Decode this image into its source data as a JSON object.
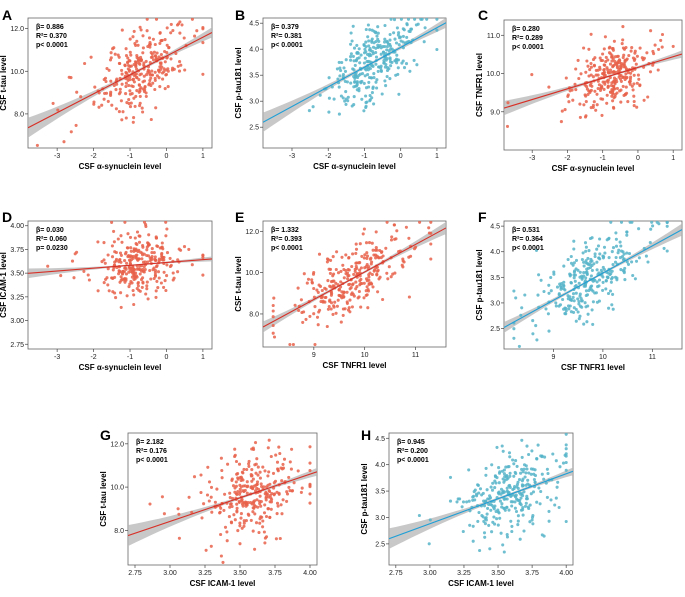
{
  "colors": {
    "red": "#e8624a",
    "blue": "#56b4c9",
    "red_line": "#d73027",
    "blue_line": "#1f9fd6",
    "band": "#b5b5b5"
  },
  "chart_data": [
    {
      "type": "scatter",
      "letter": "A",
      "color": "red",
      "stats": {
        "beta": "β= 0.886",
        "r2": "R²= 0.370",
        "p": "p< 0.0001"
      },
      "xlabel": "CSF α-synuclein level",
      "ylabel": "CSF t-tau level",
      "xlim": [
        -3.8,
        1.25
      ],
      "ylim": [
        6.4,
        12.5
      ],
      "xticks": [
        -3,
        -2,
        -1,
        0,
        1
      ],
      "xtick_labels": [
        "-3",
        "-2",
        "-1",
        "0",
        "1"
      ],
      "yticks": [
        8,
        10,
        12
      ],
      "ytick_labels": [
        "8.0",
        "10.0",
        "12.0"
      ],
      "x_center": -0.75,
      "x_spread": 0.55,
      "x_min_pt": -3.7,
      "x_max_pt": 1.0,
      "fit": {
        "intercept": 10.05,
        "slope": 0.886
      },
      "resid_sd": 0.9,
      "band_width": 0.55
    },
    {
      "type": "scatter",
      "letter": "B",
      "color": "blue",
      "stats": {
        "beta": "β= 0.379",
        "r2": "R²= 0.381",
        "p": "p< 0.0001"
      },
      "xlabel": "CSF α-synuclein level",
      "ylabel": "CSF p-tau181 level",
      "xlim": [
        -3.8,
        1.25
      ],
      "ylim": [
        2.1,
        4.6
      ],
      "xticks": [
        -3,
        -2,
        -1,
        0,
        1
      ],
      "xtick_labels": [
        "-3",
        "-2",
        "-1",
        "0",
        "1"
      ],
      "yticks": [
        2.5,
        3.0,
        3.5,
        4.0,
        4.5
      ],
      "ytick_labels": [
        "2.5",
        "3.0",
        "3.5",
        "4.0",
        "4.5"
      ],
      "x_center": -0.75,
      "x_spread": 0.55,
      "x_min_pt": -3.7,
      "x_max_pt": 1.0,
      "fit": {
        "intercept": 3.75,
        "slope": 0.379
      },
      "resid_sd": 0.36,
      "band_width": 0.22
    },
    {
      "type": "scatter",
      "letter": "C",
      "color": "red",
      "stats": {
        "beta": "β= 0.280",
        "r2": "R²= 0.289",
        "p": "p< 0.0001"
      },
      "xlabel": "CSF α-synuclein level",
      "ylabel": "CSF TNFR1 level",
      "xlim": [
        -3.8,
        1.25
      ],
      "ylim": [
        8.0,
        11.4
      ],
      "xticks": [
        -3,
        -2,
        -1,
        0,
        1
      ],
      "xtick_labels": [
        "-3",
        "-2",
        "-1",
        "0",
        "1"
      ],
      "yticks": [
        9,
        10,
        11
      ],
      "ytick_labels": [
        "9.0",
        "10.0",
        "11.0"
      ],
      "x_center": -0.75,
      "x_spread": 0.55,
      "x_min_pt": -3.7,
      "x_max_pt": 1.0,
      "fit": {
        "intercept": 9.95,
        "slope": 0.28
      },
      "resid_sd": 0.42,
      "band_width": 0.22
    },
    {
      "type": "scatter",
      "letter": "D",
      "color": "red",
      "stats": {
        "beta": "β= 0.030",
        "r2": "R²= 0.060",
        "p": "p= 0.0230"
      },
      "xlabel": "CSF α-synuclein level",
      "ylabel": "CSF ICAM-1 level",
      "xlim": [
        -3.8,
        1.25
      ],
      "ylim": [
        2.7,
        4.05
      ],
      "xticks": [
        -3,
        -2,
        -1,
        0,
        1
      ],
      "xtick_labels": [
        "-3",
        "-2",
        "-1",
        "0",
        "1"
      ],
      "yticks": [
        2.75,
        3.0,
        3.25,
        3.5,
        3.75,
        4.0
      ],
      "ytick_labels": [
        "2.75",
        "3.00",
        "3.25",
        "3.50",
        "3.75",
        "4.00"
      ],
      "x_center": -0.75,
      "x_spread": 0.55,
      "x_min_pt": -3.7,
      "x_max_pt": 1.0,
      "fit": {
        "intercept": 3.59,
        "slope": 0.03
      },
      "resid_sd": 0.16,
      "band_width": 0.06
    },
    {
      "type": "scatter",
      "letter": "E",
      "color": "red",
      "stats": {
        "beta": "β= 1.332",
        "r2": "R²= 0.393",
        "p": "p< 0.0001"
      },
      "xlabel": "CSF TNFR1 level",
      "ylabel": "CSF t-tau level",
      "xlim": [
        8.0,
        11.6
      ],
      "ylim": [
        6.4,
        12.5
      ],
      "xticks": [
        9,
        10,
        11
      ],
      "xtick_labels": [
        "9",
        "10",
        "11"
      ],
      "yticks": [
        8,
        10,
        12
      ],
      "ytick_labels": [
        "8.0",
        "10.0",
        "12.0"
      ],
      "x_center": 9.75,
      "x_spread": 0.5,
      "x_min_pt": 8.2,
      "x_max_pt": 11.3,
      "fit": {
        "intercept": 9.7,
        "slope": 1.332
      },
      "resid_sd": 0.85,
      "band_width": 0.45
    },
    {
      "type": "scatter",
      "letter": "F",
      "color": "blue",
      "stats": {
        "beta": "β= 0.531",
        "r2": "R²= 0.364",
        "p": "p< 0.0001"
      },
      "xlabel": "CSF TNFR1 level",
      "ylabel": "CSF p-tau181 level",
      "xlim": [
        8.0,
        11.6
      ],
      "ylim": [
        2.1,
        4.6
      ],
      "xticks": [
        9,
        10,
        11
      ],
      "xtick_labels": [
        "9",
        "10",
        "11"
      ],
      "yticks": [
        2.5,
        3.0,
        3.5,
        4.0,
        4.5
      ],
      "ytick_labels": [
        "2.5",
        "3.0",
        "3.5",
        "4.0",
        "4.5"
      ],
      "x_center": 9.75,
      "x_spread": 0.5,
      "x_min_pt": 8.2,
      "x_max_pt": 11.3,
      "fit": {
        "intercept": 3.45,
        "slope": 0.531
      },
      "resid_sd": 0.36,
      "band_width": 0.18
    },
    {
      "type": "scatter",
      "letter": "G",
      "color": "red",
      "stats": {
        "beta": "β= 2.182",
        "r2": "R²= 0.176",
        "p": "p< 0.0001"
      },
      "xlabel": "CSF ICAM-1 level",
      "ylabel": "CSF t-tau level",
      "xlim": [
        2.7,
        4.05
      ],
      "ylim": [
        6.4,
        12.5
      ],
      "xticks": [
        2.75,
        3.0,
        3.25,
        3.5,
        3.75,
        4.0
      ],
      "xtick_labels": [
        "2.75",
        "3.00",
        "3.25",
        "3.50",
        "3.75",
        "4.00"
      ],
      "yticks": [
        8,
        10,
        12
      ],
      "ytick_labels": [
        "8.0",
        "10.0",
        "12.0"
      ],
      "x_center": 3.58,
      "x_spread": 0.17,
      "x_min_pt": 2.78,
      "x_max_pt": 4.0,
      "fit": {
        "intercept": 9.68,
        "slope": 2.182
      },
      "resid_sd": 1.0,
      "band_width": 0.5
    },
    {
      "type": "scatter",
      "letter": "H",
      "color": "blue",
      "stats": {
        "beta": "β= 0.945",
        "r2": "R²= 0.200",
        "p": "p< 0.0001"
      },
      "xlabel": "CSF ICAM-1 level",
      "ylabel": "CSF p-tau181 level",
      "xlim": [
        2.7,
        4.05
      ],
      "ylim": [
        2.1,
        4.6
      ],
      "xticks": [
        2.75,
        3.0,
        3.25,
        3.5,
        3.75,
        4.0
      ],
      "xtick_labels": [
        "2.75",
        "3.00",
        "3.25",
        "3.50",
        "3.75",
        "4.00"
      ],
      "yticks": [
        2.5,
        3.0,
        3.5,
        4.0,
        4.5
      ],
      "ytick_labels": [
        "2.5",
        "3.0",
        "3.5",
        "4.0",
        "4.5"
      ],
      "x_center": 3.58,
      "x_spread": 0.17,
      "x_min_pt": 2.78,
      "x_max_pt": 4.0,
      "fit": {
        "intercept": 3.43,
        "slope": 0.945
      },
      "resid_sd": 0.4,
      "band_width": 0.2
    }
  ]
}
